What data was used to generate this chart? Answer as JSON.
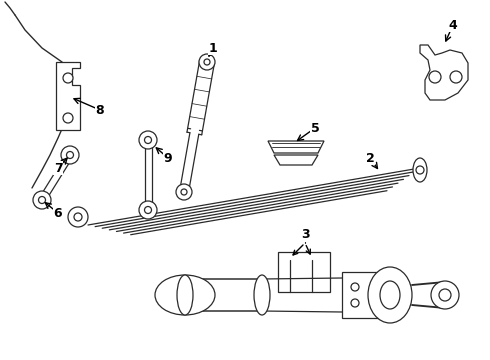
{
  "bg_color": "#ffffff",
  "line_color": "#2a2a2a",
  "lw": 0.9,
  "figsize": [
    4.9,
    3.6
  ],
  "dpi": 100
}
